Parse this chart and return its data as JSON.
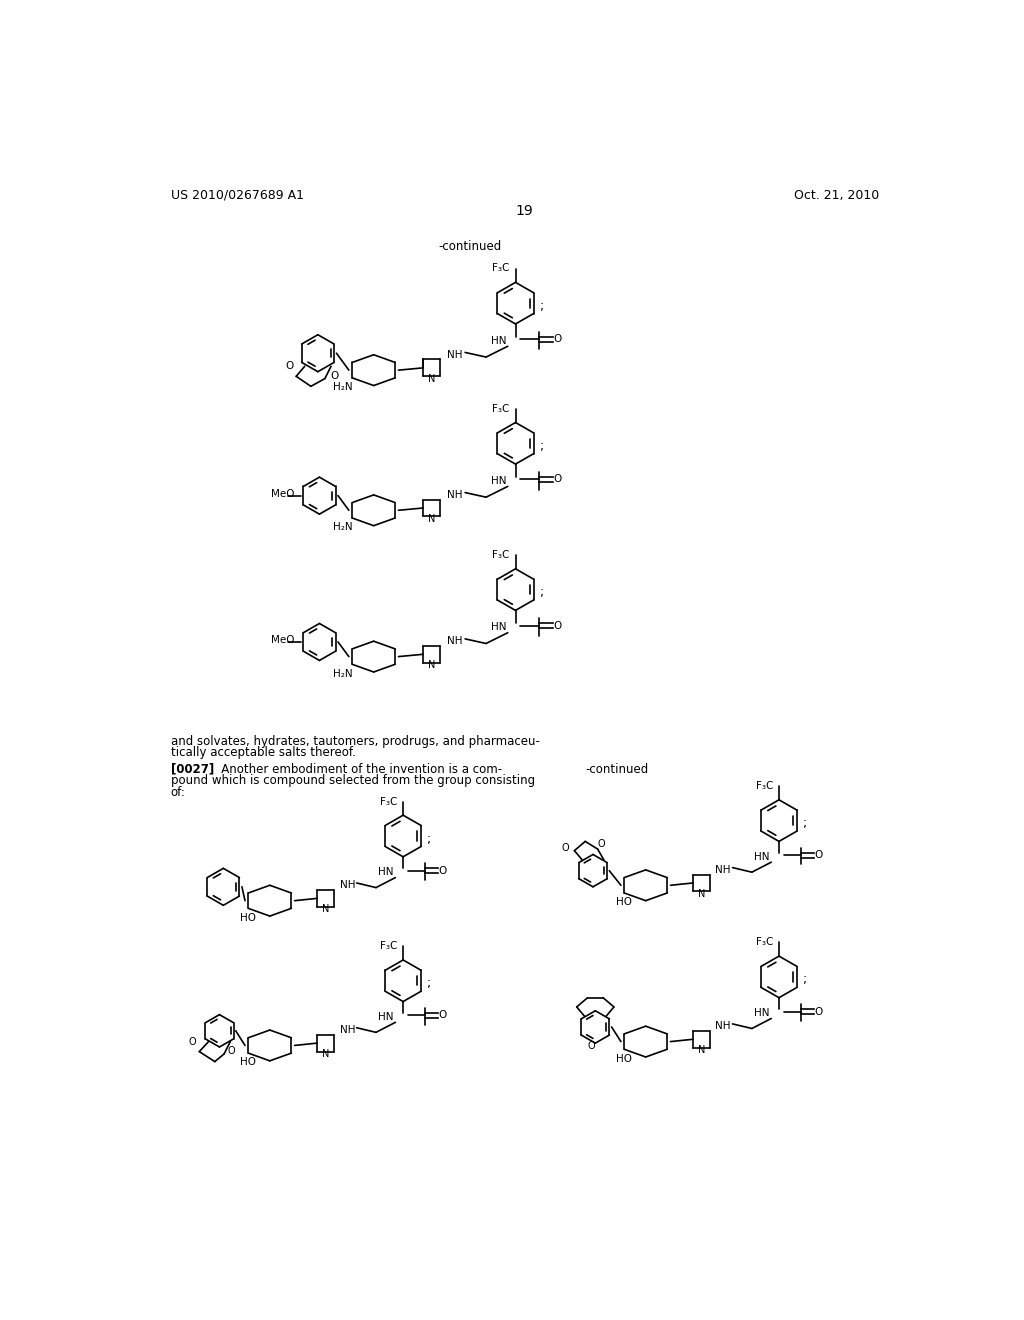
{
  "page_number": "19",
  "patent_number": "US 2010/0267689 A1",
  "patent_date": "Oct. 21, 2010",
  "continued_label": "-continued",
  "continued_label2": "-continued",
  "paragraph_line1": "and solvates, hydrates, tautomers, prodrugs, and pharmaceu-",
  "paragraph_line2": "tically acceptable salts thereof.",
  "para_bold": "[0027]",
  "para_rest1": "   Another embodiment of the invention is a com-",
  "para_rest2": "pound which is compound selected from the group consisting",
  "para_rest3": "of:",
  "background_color": "#ffffff",
  "text_color": "#000000",
  "font_size_header": 9,
  "font_size_body": 8.5,
  "font_size_page": 10
}
